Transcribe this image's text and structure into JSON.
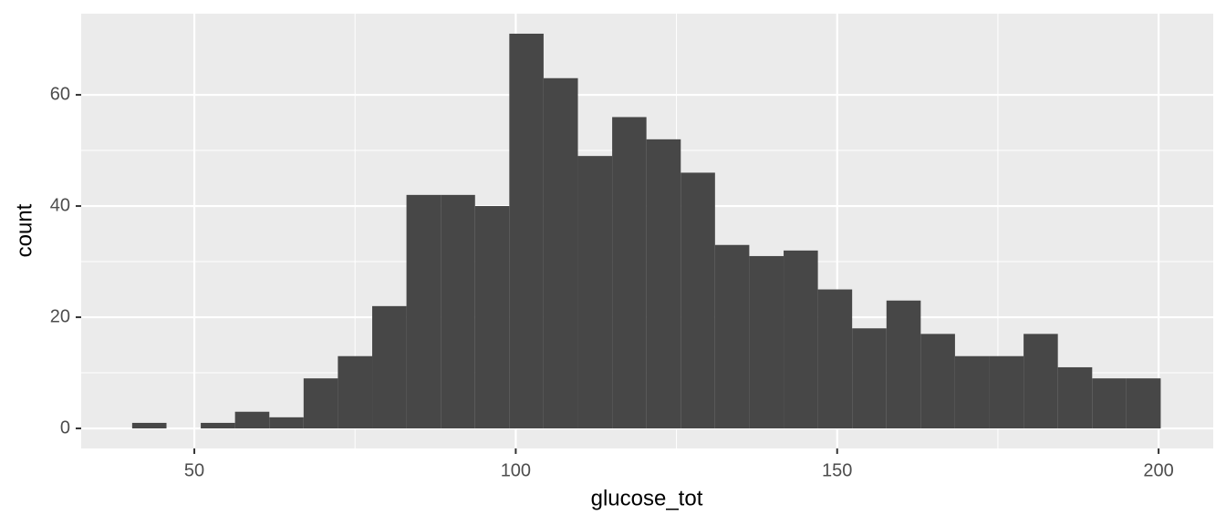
{
  "chart_data": {
    "type": "histogram",
    "x_label": "glucose_tot",
    "y_label": "count",
    "bins": [
      40.33,
      45.67,
      51,
      56.33,
      61.67,
      67,
      72.33,
      77.67,
      83,
      88.33,
      93.67,
      99,
      104.33,
      109.67,
      115,
      120.33,
      125.67,
      131,
      136.33,
      141.67,
      147,
      152.33,
      157.67,
      163,
      168.33,
      173.67,
      179,
      184.33,
      189.67,
      195,
      200.33
    ],
    "values": [
      1,
      0,
      1,
      3,
      2,
      9,
      13,
      22,
      42,
      42,
      40,
      71,
      63,
      49,
      56,
      52,
      46,
      33,
      31,
      32,
      25,
      18,
      23,
      17,
      13,
      13,
      17,
      11,
      9,
      9
    ],
    "color": "#474747",
    "xlim": [
      32.4,
      208.5
    ],
    "xticks": [
      50,
      100,
      150,
      200
    ],
    "ylim": [
      -3.6,
      74.6
    ],
    "yticks": [
      0,
      20,
      40,
      60
    ],
    "grid": true
  }
}
